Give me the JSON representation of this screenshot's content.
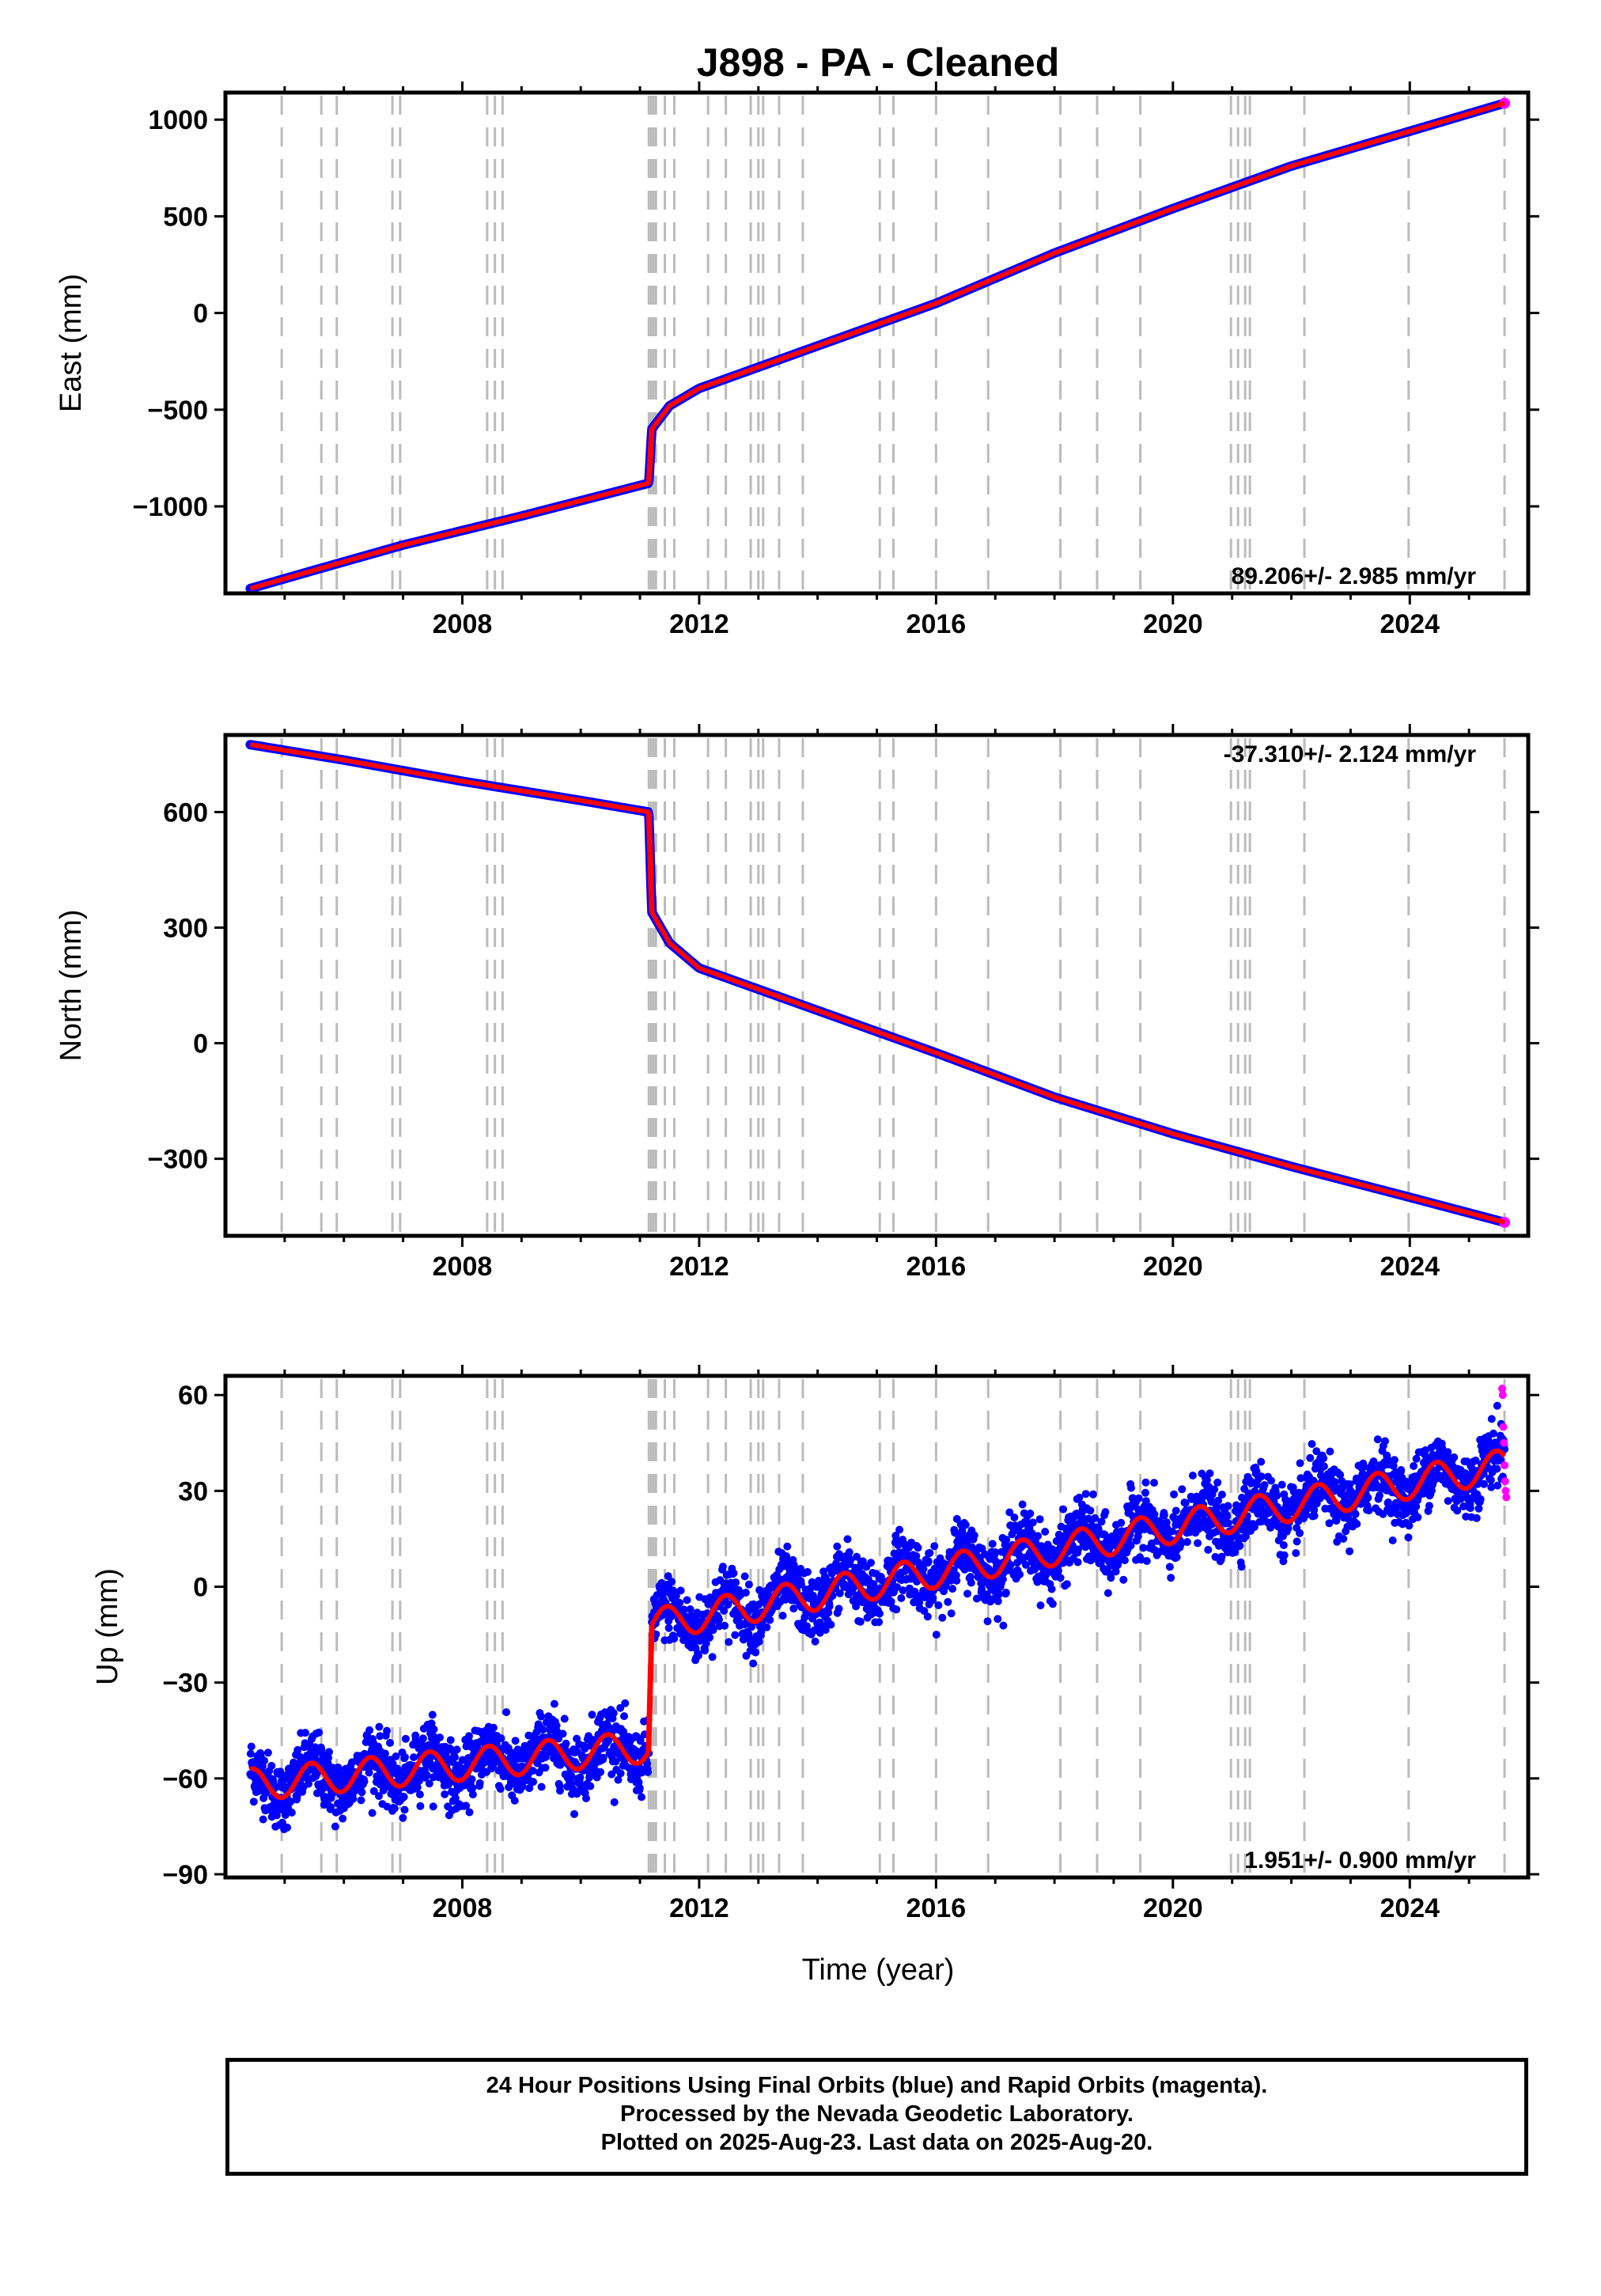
{
  "figure_title": "J898  - PA - Cleaned",
  "colors": {
    "final_orbits": "#0000ff",
    "rapid_orbits": "#ff00ff",
    "model_fit": "#ff0000",
    "event_lines": "#bbbbbb"
  },
  "footer": {
    "line1": "24 Hour Positions Using Final Orbits (blue) and Rapid Orbits (magenta).",
    "line2": "Processed by the Nevada Geodetic Laboratory.",
    "line3": "Plotted on 2025-Aug-23. Last data on 2025-Aug-20."
  },
  "chart_data": [
    {
      "type": "scatter",
      "id": "east",
      "xlabel": "",
      "ylabel": "East (mm)",
      "xlim": [
        2004.0,
        2026.0
      ],
      "ylim": [
        -1450,
        1140
      ],
      "xticks": [
        2008,
        2012,
        2016,
        2020,
        2024
      ],
      "yticks": [
        1000,
        500,
        0,
        -500,
        -1000
      ],
      "ytick_labels": [
        "1000",
        "500",
        "0",
        "−500",
        "−1000"
      ],
      "rate_label": "89.206+/- 2.985 mm/yr",
      "rate_position": "bottom-right",
      "grid": false,
      "series": [
        {
          "style": "final-orbit points with model fit",
          "x": [
            2004.42,
            2005.5,
            2007.0,
            2009.0,
            2011.15,
            2011.2,
            2011.5,
            2012.0,
            2014.0,
            2016.0,
            2018.0,
            2020.0,
            2022.0,
            2024.0,
            2025.6
          ],
          "values": [
            -1425,
            -1330,
            -1200,
            -1050,
            -880,
            -600,
            -480,
            -390,
            -170,
            50,
            310,
            540,
            760,
            940,
            1085
          ]
        }
      ]
    },
    {
      "type": "scatter",
      "id": "north",
      "xlabel": "",
      "ylabel": "North (mm)",
      "xlim": [
        2004.0,
        2026.0
      ],
      "ylim": [
        -500,
        800
      ],
      "xticks": [
        2008,
        2012,
        2016,
        2020,
        2024
      ],
      "yticks": [
        600,
        300,
        0,
        -300
      ],
      "ytick_labels": [
        "600",
        "300",
        "0",
        "−300"
      ],
      "rate_label": "-37.310+/- 2.124 mm/yr",
      "rate_position": "top-right",
      "grid": false,
      "series": [
        {
          "style": "final-orbit points with model fit",
          "x": [
            2004.42,
            2006.0,
            2008.0,
            2010.0,
            2011.15,
            2011.2,
            2011.5,
            2012.0,
            2014.0,
            2016.0,
            2018.0,
            2020.0,
            2022.0,
            2024.0,
            2025.6
          ],
          "values": [
            775,
            735,
            680,
            630,
            600,
            340,
            260,
            195,
            85,
            -25,
            -140,
            -235,
            -320,
            -400,
            -465
          ]
        }
      ]
    },
    {
      "type": "scatter",
      "id": "up",
      "xlabel": "Time (year)",
      "ylabel": "Up (mm)",
      "xlim": [
        2004.0,
        2026.0
      ],
      "ylim": [
        -91,
        66
      ],
      "xticks": [
        2008,
        2012,
        2016,
        2020,
        2024
      ],
      "yticks": [
        60,
        30,
        0,
        -30,
        -60,
        -90
      ],
      "ytick_labels": [
        "60",
        "30",
        "0",
        "−30",
        "−60",
        "−90"
      ],
      "rate_label": "1.951+/- 0.900 mm/yr",
      "rate_position": "bottom-right",
      "grid": false,
      "trend_segments": [
        {
          "x": [
            2004.42,
            2011.15
          ],
          "values": [
            -62,
            -50
          ]
        },
        {
          "x": [
            2011.2,
            2025.6
          ],
          "values": [
            -12,
            38
          ]
        }
      ],
      "seasonal_amplitude_mm": 5,
      "scatter_sigma_mm": 5,
      "rapid_points": {
        "x": [
          2025.56,
          2025.57,
          2025.58,
          2025.59,
          2025.6,
          2025.61,
          2025.62,
          2025.63
        ],
        "values": [
          62,
          60,
          50,
          45,
          38,
          33,
          30,
          28
        ]
      }
    }
  ],
  "event_lines": {
    "style": "dashed vertical",
    "x": [
      2004.95,
      2005.62,
      2005.88,
      2006.82,
      2006.95,
      2008.42,
      2008.55,
      2008.68,
      2011.15,
      2011.19,
      2011.23,
      2011.27,
      2011.42,
      2011.58,
      2012.15,
      2012.45,
      2012.87,
      2013.0,
      2013.08,
      2013.35,
      2013.75,
      2015.05,
      2015.28,
      2016.0,
      2016.88,
      2018.1,
      2018.72,
      2019.45,
      2020.98,
      2021.1,
      2021.22,
      2021.3,
      2022.22,
      2023.98,
      2025.6
    ]
  }
}
